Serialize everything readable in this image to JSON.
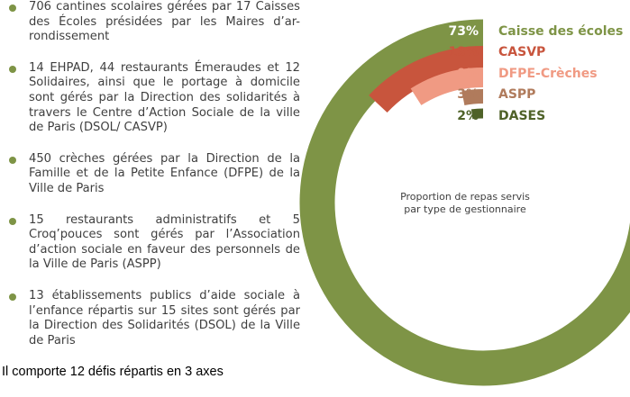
{
  "bullets": [
    "706 cantines scolaires gérées par 17 Caisses des Écoles présidées par les  Maires d’ar-rondissement",
    "14 EHPAD, 44 restaurants Émeraudes et 12 Solidaires, ainsi que le portage à domicile sont gérés par la Direction des solidarités à travers le Centre d’Action Sociale de la ville de Paris (DSOL/ CASVP)",
    "450 crèches gérées par la Direction de la Famille et de la Petite Enfance (DFPE) de la Ville de Paris",
    "15 restaurants administratifs et 5 Croq’pouces sont gérés par l’Association d’action sociale en faveur des personnels de la Ville de Paris (ASPP)",
    "13 établissements publics d’aide sociale à l’enfance répartis sur 15 sites sont gérés par la Direction des Solidarités (DSOL) de la Ville de Paris"
  ],
  "footer": "Il comporte 12 défis répartis en 3 axes",
  "chart_data": {
    "type": "pie",
    "variant": "radial-rings",
    "title": "Proportion de repas servis par type de gestionnaire",
    "title_lines": [
      "Proportion de repas servis",
      "par type de gestionnaire"
    ],
    "unit": "%",
    "categories": [
      "Caisse des écoles",
      "CASVP",
      "DFPE-Crèches",
      "ASPP",
      "DASES"
    ],
    "values": [
      73,
      13,
      9,
      3,
      2
    ],
    "value_labels": [
      "73%",
      "13%",
      "9%",
      "3%",
      "2%"
    ],
    "colors": [
      "#7e9446",
      "#c8553d",
      "#f09a83",
      "#b07b5c",
      "#4f6228"
    ],
    "label_colors": [
      "#7e9446",
      "#c8553d",
      "#f09a83",
      "#b07b5c",
      "#4f6228"
    ],
    "track_color": "#ffffff"
  }
}
